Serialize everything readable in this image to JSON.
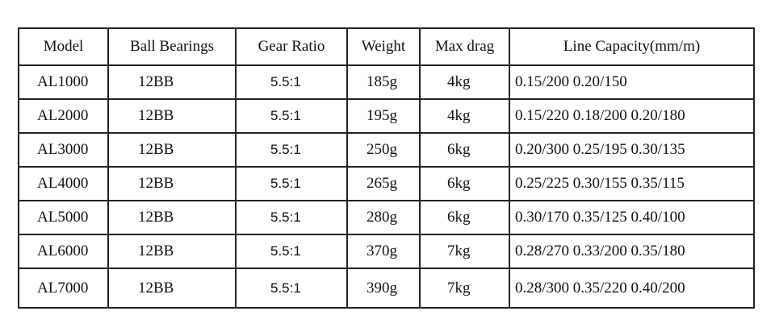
{
  "table": {
    "header": [
      "Model",
      "Ball Bearings",
      "Gear Ratio",
      "Weight",
      "Max drag",
      "Line Capacity(mm/m)"
    ],
    "rows": [
      [
        "AL1000",
        "12BB",
        "5.5:1",
        "185g",
        "4kg",
        "0.15/200 0.20/150"
      ],
      [
        "AL2000",
        "12BB",
        "5.5:1",
        "195g",
        "4kg",
        "0.15/220 0.18/200 0.20/180"
      ],
      [
        "AL3000",
        "12BB",
        "5.5:1",
        "250g",
        "6kg",
        "0.20/300 0.25/195 0.30/135"
      ],
      [
        "AL4000",
        "12BB",
        "5.5:1",
        "265g",
        "6kg",
        "0.25/225 0.30/155 0.35/115"
      ],
      [
        "AL5000",
        "12BB",
        "5.5:1",
        "280g",
        "6kg",
        "0.30/170 0.35/125 0.40/100"
      ],
      [
        "AL6000",
        "12BB",
        "5.5:1",
        "370g",
        "7kg",
        "0.28/270 0.33/200 0.35/180"
      ],
      [
        "AL7000",
        "12BB",
        "5.5:1",
        "390g",
        "7kg",
        "0.28/300 0.35/220 0.40/200"
      ]
    ]
  }
}
